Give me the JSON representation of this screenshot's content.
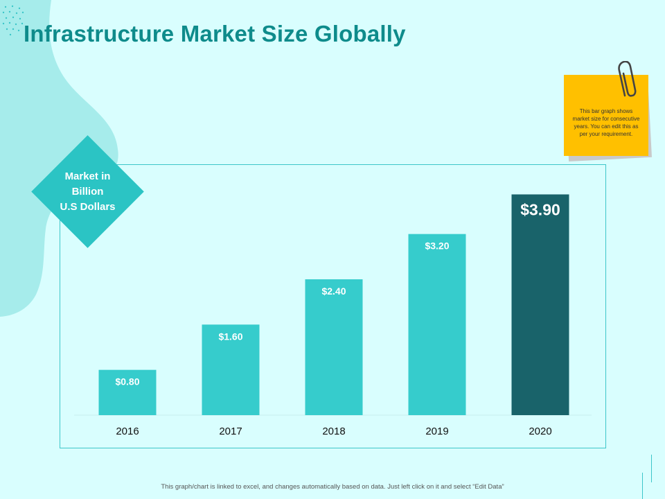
{
  "title": "Infrastructure Market Size Globally",
  "unit_label": [
    "Market in",
    "Billion",
    "U.S Dollars"
  ],
  "sticky_note": "This bar graph shows market size for consecutive years. You can edit this as per your requirement.",
  "footer": "This graph/chart is linked to excel, and changes automatically based on data. Just left click on it and select “Edit Data”",
  "colors": {
    "background": "#d9fefe",
    "title": "#0e8b8b",
    "bar": "#36cccc",
    "bar_highlight": "#19636a",
    "accent": "#2bc4c4",
    "note": "#ffc000"
  },
  "chart_data": {
    "type": "bar",
    "title": "Infrastructure Market Size Globally",
    "xlabel": "",
    "ylabel": "Market in Billion U.S Dollars",
    "categories": [
      "2016",
      "2017",
      "2018",
      "2019",
      "2020"
    ],
    "values": [
      0.8,
      1.6,
      2.4,
      3.2,
      3.9
    ],
    "data_labels": [
      "$0.80",
      "$1.60",
      "$2.40",
      "$3.20",
      "$3.90"
    ],
    "highlight_index": 4,
    "ylim": [
      0,
      4.2
    ],
    "grid": false,
    "legend": "none"
  }
}
